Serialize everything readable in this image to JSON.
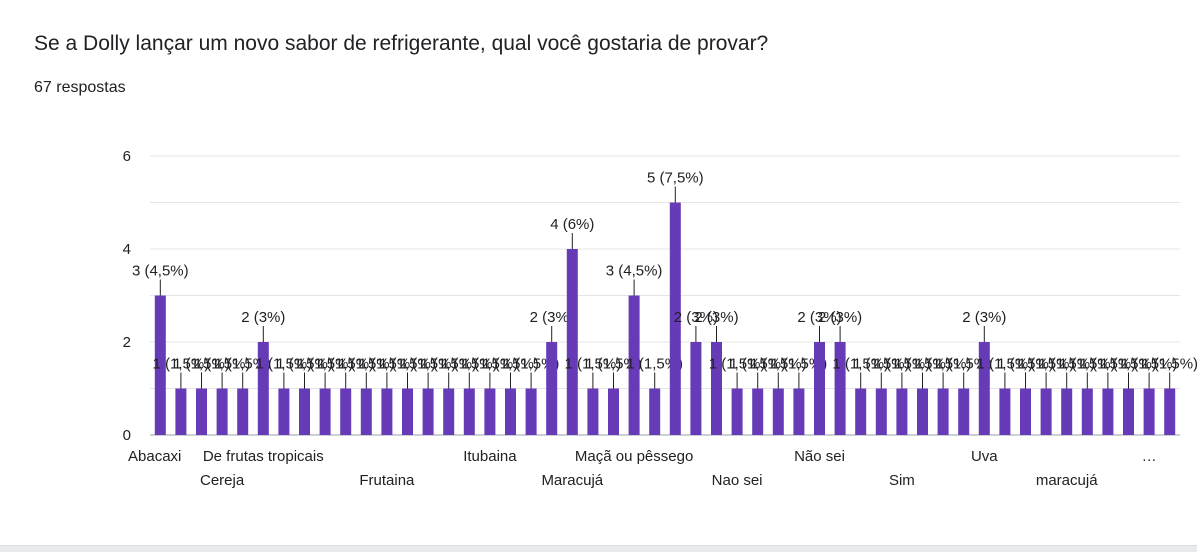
{
  "question": "Se a Dolly lançar um novo sabor de refrigerante, qual você gostaria de provar?",
  "responses": "67 respostas",
  "chart_data": {
    "type": "bar",
    "title": "Se a Dolly lançar um novo sabor de refrigerante, qual você gostaria de provar?",
    "ylim": [
      0,
      6
    ],
    "yticks": [
      0,
      2,
      4,
      6
    ],
    "bar_color": "#673ab7",
    "grid": true,
    "xlabels_visible": [
      {
        "index": 0,
        "label": "Abacaxi"
      },
      {
        "index": 3,
        "label": "Cereja"
      },
      {
        "index": 5,
        "label": "De frutas tropicais"
      },
      {
        "index": 11,
        "label": "Frutaina"
      },
      {
        "index": 16,
        "label": "Itubaina"
      },
      {
        "index": 20,
        "label": "Maracujá"
      },
      {
        "index": 23,
        "label": "Maçã ou pêssego"
      },
      {
        "index": 28,
        "label": "Nao sei"
      },
      {
        "index": 32,
        "label": "Não sei"
      },
      {
        "index": 36,
        "label": "Sim"
      },
      {
        "index": 40,
        "label": "Uva"
      },
      {
        "index": 44,
        "label": "maracujá"
      },
      {
        "index": 48,
        "label": "…"
      }
    ],
    "values": [
      3,
      1,
      1,
      1,
      1,
      2,
      1,
      1,
      1,
      1,
      1,
      1,
      1,
      1,
      1,
      1,
      1,
      1,
      1,
      2,
      4,
      1,
      1,
      3,
      1,
      5,
      2,
      2,
      1,
      1,
      1,
      1,
      2,
      2,
      1,
      1,
      1,
      1,
      1,
      1,
      2,
      1,
      1,
      1,
      1,
      1,
      1,
      1,
      1,
      1
    ],
    "data_labels": [
      "3 (4,5%)",
      "1 (1,5%)",
      "1 (1,5%)",
      "1 (1,5%)",
      "1 (1,5%)",
      "2 (3%)",
      "1 (1,5%)",
      "1 (1,5%)",
      "1 (1,5%)",
      "1 (1,5%)",
      "1 (1,5%)",
      "1 (1,5%)",
      "1 (1,5%)",
      "1 (1,5%)",
      "1 (1,5%)",
      "1 (1,5%)",
      "1 (1,5%)",
      "1 (1,5%)",
      "1 (1,5%)",
      "2 (3%)",
      "4 (6%)",
      "1 (1,5%)",
      "1 (1,5%)",
      "3 (4,5%)",
      "1 (1,5%)",
      "5 (7,5%)",
      "2 (3%)",
      "2 (3%)",
      "1 (1,5%)",
      "1 (1,5%)",
      "1 (1,5%)",
      "1 (1,5%)",
      "2 (3%)",
      "2 (3%)",
      "1 (1,5%)",
      "1 (1,5%)",
      "1 (1,5%)",
      "1 (1,5%)",
      "1 (1,5%)",
      "1 (1,5%)",
      "2 (3%)",
      "1 (1,5%)",
      "1 (1,5%)",
      "1 (1,5%)",
      "1 (1,5%)",
      "1 (1,5%)",
      "1 (1,5%)",
      "1 (1,5%)",
      "1 (1,5%)",
      "1 (1,5%)"
    ]
  }
}
